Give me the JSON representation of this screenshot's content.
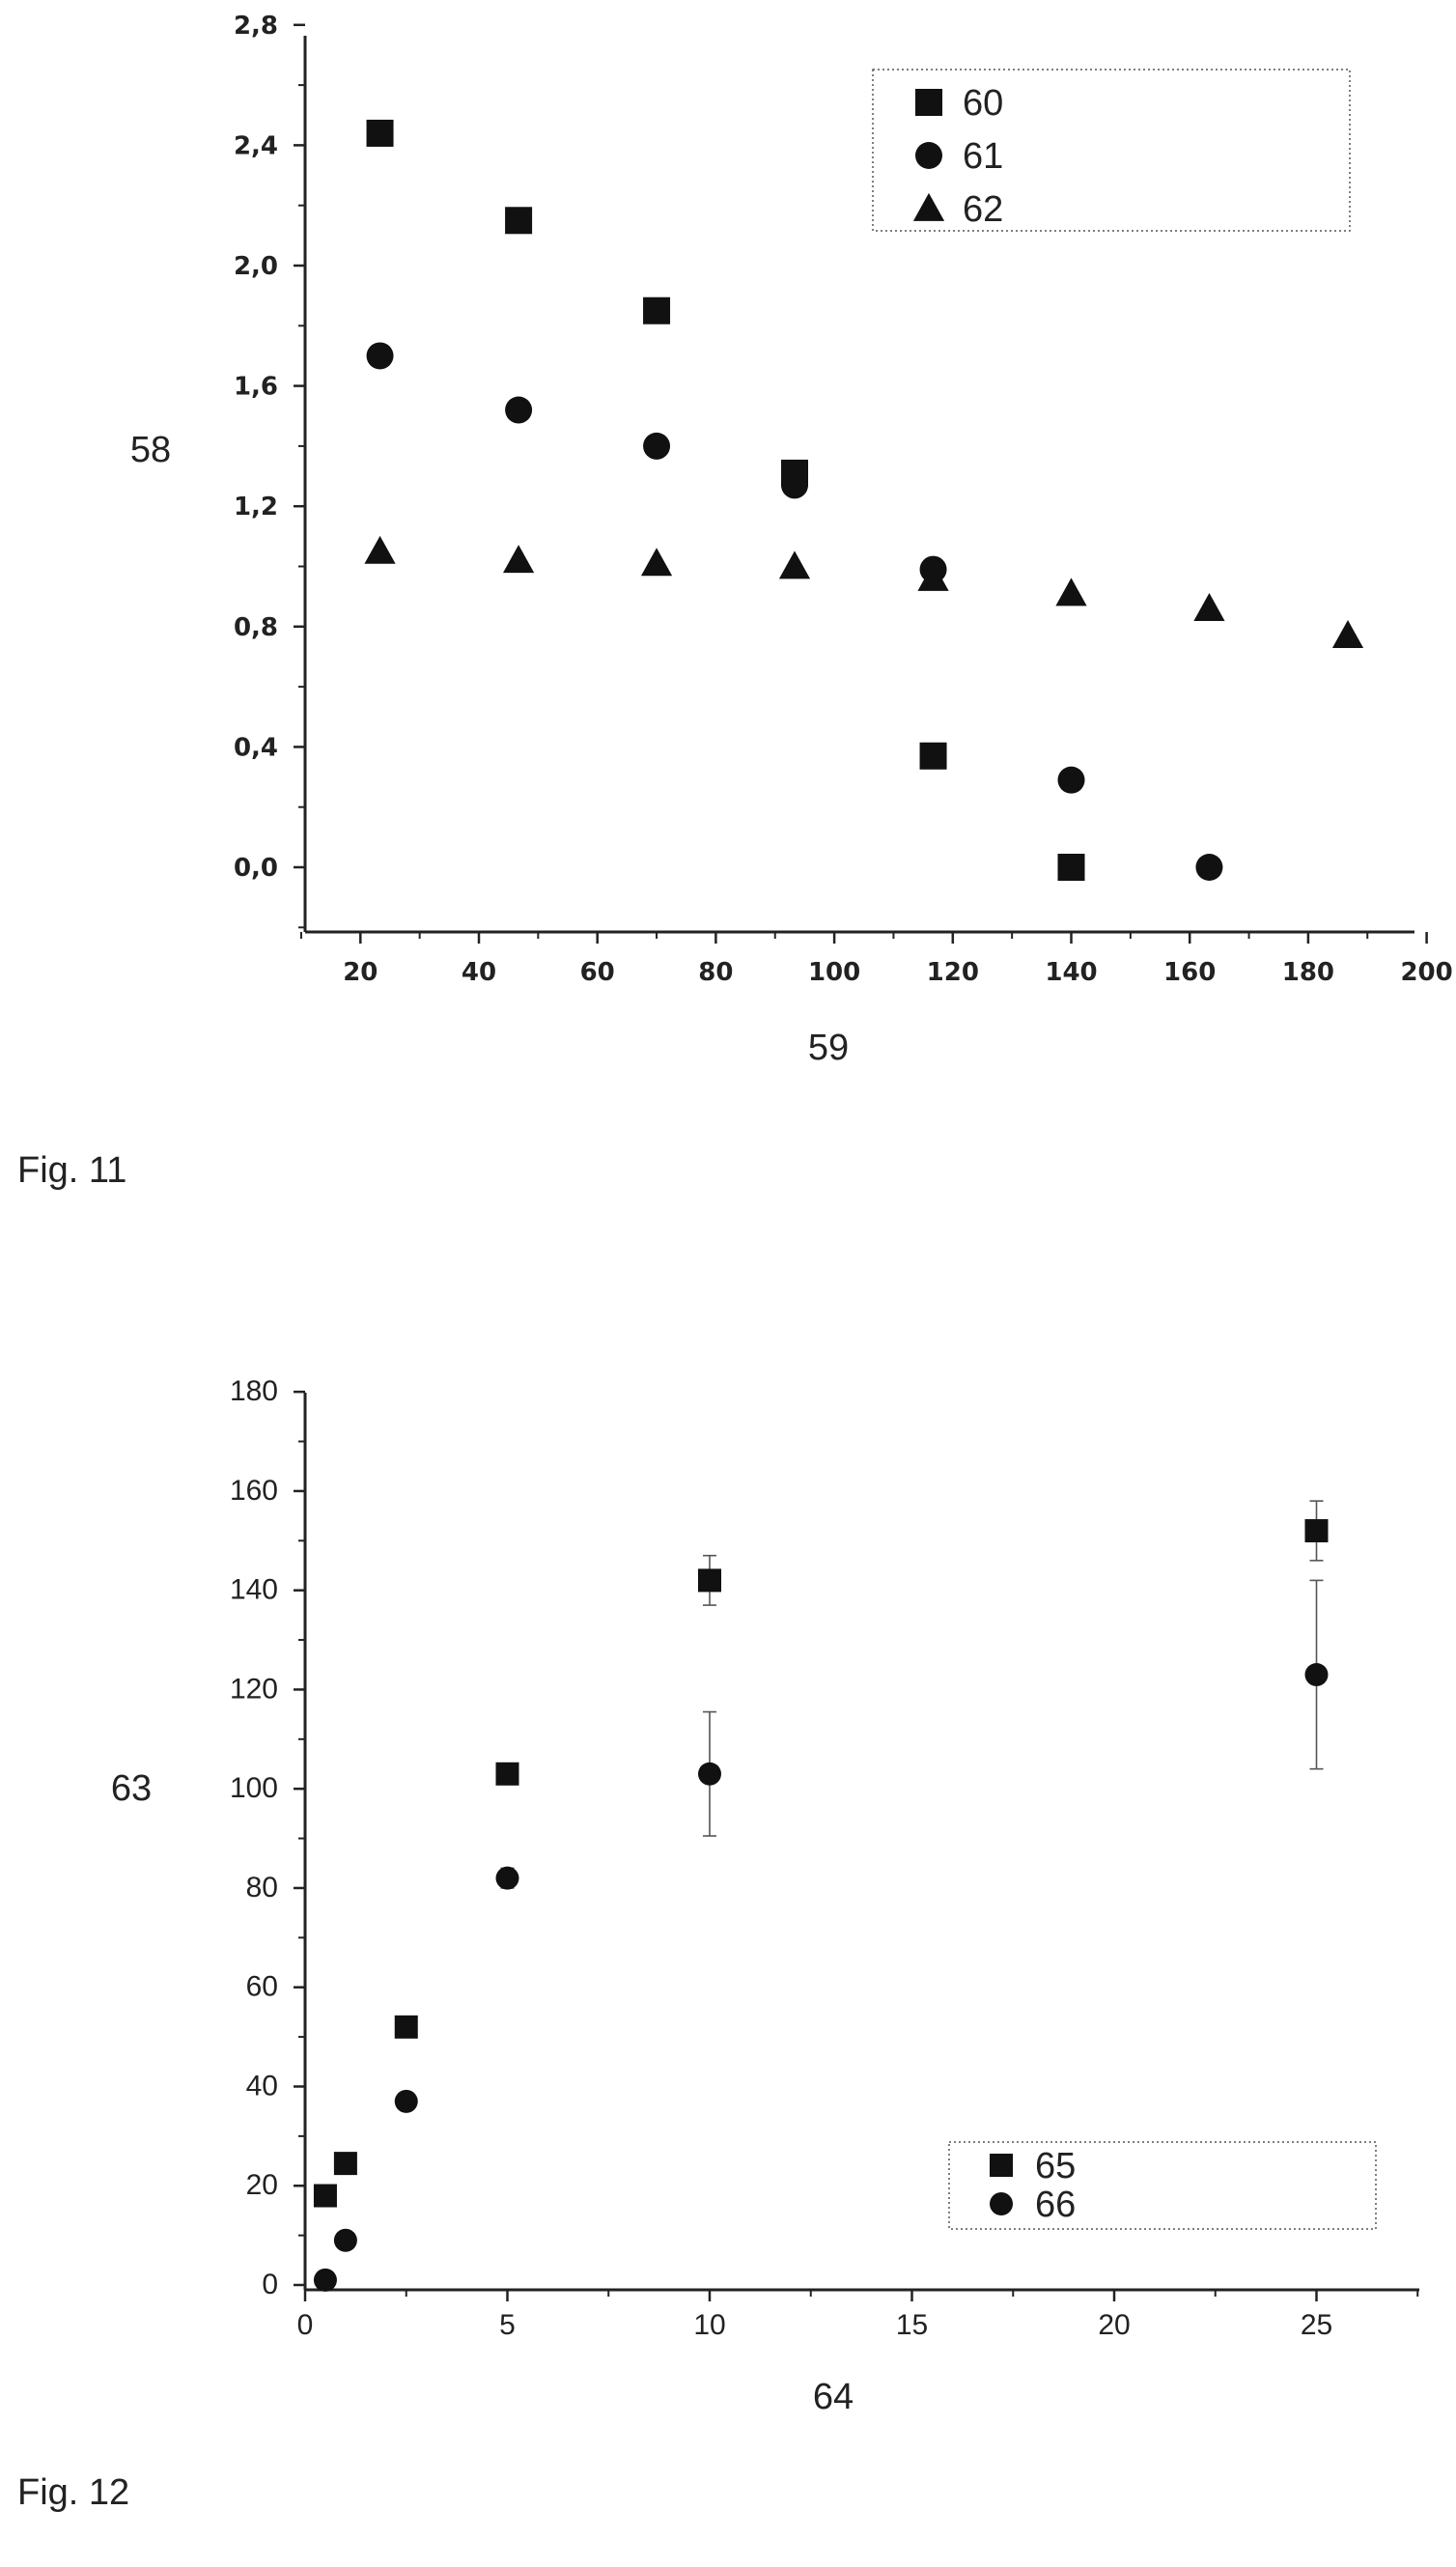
{
  "chart_data": [
    {
      "type": "scatter",
      "caption": "Fig. 11",
      "title": "",
      "xlabel": "59",
      "ylabel": "58",
      "xlim": [
        10,
        200
      ],
      "ylim": [
        -0.2,
        2.8
      ],
      "xticks": [
        "20",
        "40",
        "60",
        "80",
        "100",
        "120",
        "140",
        "160",
        "180",
        "200"
      ],
      "yticks": [
        "0,0",
        "0,4",
        "0,8",
        "1,2",
        "1,6",
        "2,0",
        "2,4",
        "2,8"
      ],
      "grid": false,
      "legend_position": "top-right",
      "series": [
        {
          "name": "60",
          "marker": "square",
          "x": [
            23.3,
            46.7,
            70,
            93.3,
            116.7,
            140
          ],
          "y": [
            2.44,
            2.15,
            1.85,
            1.31,
            0.37,
            0.0
          ]
        },
        {
          "name": "61",
          "marker": "circle",
          "x": [
            23.3,
            46.7,
            70,
            93.3,
            116.7,
            140,
            163.3
          ],
          "y": [
            1.7,
            1.52,
            1.4,
            1.27,
            0.99,
            0.29,
            0.0
          ]
        },
        {
          "name": "62",
          "marker": "triangle",
          "x": [
            23.3,
            46.7,
            70,
            93.3,
            116.7,
            140,
            163.3,
            186.7
          ],
          "y": [
            1.05,
            1.02,
            1.01,
            1.0,
            0.96,
            0.91,
            0.86,
            0.77
          ]
        }
      ]
    },
    {
      "type": "scatter",
      "caption": "Fig. 12",
      "title": "",
      "xlabel": "64",
      "ylabel": "63",
      "xlim": [
        0,
        27.5
      ],
      "ylim": [
        0,
        180
      ],
      "xticks": [
        "0",
        "5",
        "10",
        "15",
        "20",
        "25"
      ],
      "yticks": [
        "0",
        "20",
        "40",
        "60",
        "80",
        "100",
        "120",
        "140",
        "160",
        "180"
      ],
      "grid": false,
      "legend_position": "bottom-right",
      "series": [
        {
          "name": "65",
          "marker": "square",
          "x": [
            0.5,
            1,
            2.5,
            5,
            10,
            25
          ],
          "y": [
            18,
            24.5,
            52,
            103,
            142,
            152
          ],
          "err": [
            0,
            0,
            0,
            0,
            5,
            6
          ]
        },
        {
          "name": "66",
          "marker": "circle",
          "x": [
            0.5,
            1,
            2.5,
            5,
            10,
            25
          ],
          "y": [
            1,
            9,
            37,
            82,
            103,
            123
          ],
          "err": [
            0,
            0,
            0,
            2,
            12.5,
            19
          ]
        }
      ]
    }
  ]
}
